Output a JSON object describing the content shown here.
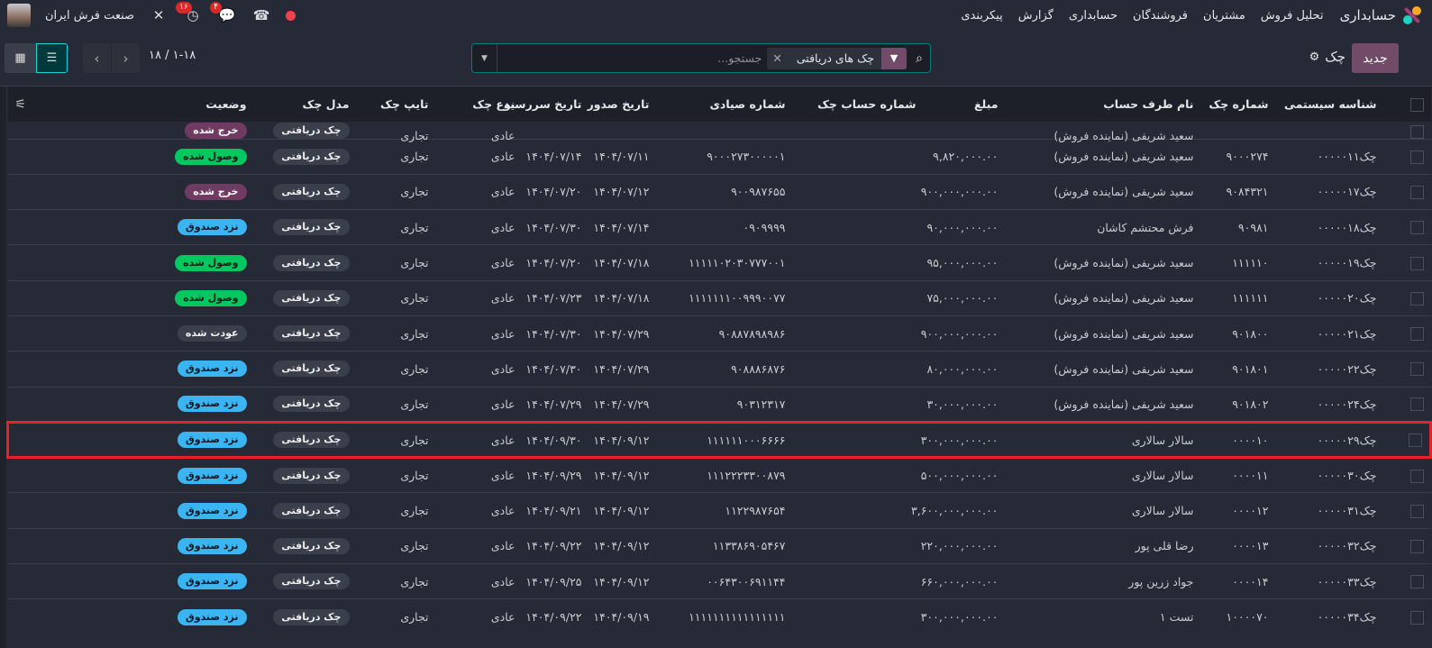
{
  "navbar": {
    "app_name": "حسابداری",
    "menu": [
      "تحلیل فروش",
      "مشتریان",
      "فروشندگان",
      "حسابداری",
      "گزارش",
      "پیکربندی"
    ],
    "company": "صنعت فرش ایران",
    "activity_count": "۱۶",
    "message_count": "۴",
    "logo_colors": [
      "#f9a825",
      "#1ad3c0",
      "#a43c78"
    ]
  },
  "control": {
    "new_label": "جدید",
    "breadcrumb": "چک",
    "facet": "چک های دریافتی",
    "search_placeholder": "جستجو...",
    "pager": "۱-۱۸ / ۱۸",
    "active_view": "list"
  },
  "columns": [
    "شناسه سیستمی",
    "شماره چک",
    "نام طرف حساب",
    "مبلغ",
    "شماره حساب چک",
    "شماره صیادی",
    "تاریخ صدور",
    "تاریخ سررسید",
    "نوع چک",
    "تایپ چک",
    "مدل چک",
    "وضعیت"
  ],
  "status_colors": {
    "وصول شده": "green",
    "خرج شده": "purple",
    "نزد صندوق": "blue",
    "عودت شده": "grey"
  },
  "rows": [
    {
      "partial": true,
      "id": "",
      "num": "",
      "partner": "سعید شریفی (نماینده فروش)",
      "amount": "",
      "account": "",
      "sayadi": "",
      "issue": "",
      "due": "",
      "kind": "عادی",
      "type": "تجاری",
      "model": "چک دریافتی",
      "status": "خرج شده"
    },
    {
      "id": "چک۰۰۰۰۰۱۱",
      "num": "۹۰۰۰۲۷۴",
      "partner": "سعید شریفی (نماینده فروش)",
      "amount": "۹,۸۲۰,۰۰۰.۰۰",
      "account": "",
      "sayadi": "۹۰۰۰۲۷۳۰۰۰۰۰۱",
      "issue": "۱۴۰۴/۰۷/۱۱",
      "due": "۱۴۰۴/۰۷/۱۴",
      "kind": "عادی",
      "type": "تجاری",
      "model": "چک دریافتی",
      "status": "وصول شده"
    },
    {
      "id": "چک۰۰۰۰۰۱۷",
      "num": "۹۰۸۴۳۲۱",
      "partner": "سعید شریفی (نماینده فروش)",
      "amount": "۹۰۰,۰۰۰,۰۰۰.۰۰",
      "account": "",
      "sayadi": "۹۰۰۹۸۷۶۵۵",
      "issue": "۱۴۰۴/۰۷/۱۲",
      "due": "۱۴۰۴/۰۷/۲۰",
      "kind": "عادی",
      "type": "تجاری",
      "model": "چک دریافتی",
      "status": "خرج شده"
    },
    {
      "id": "چک۰۰۰۰۰۱۸",
      "num": "۹۰۹۸۱",
      "partner": "فرش محتشم کاشان",
      "amount": "۹۰,۰۰۰,۰۰۰.۰۰",
      "account": "",
      "sayadi": "۰۹۰۹۹۹۹",
      "issue": "۱۴۰۴/۰۷/۱۴",
      "due": "۱۴۰۴/۰۷/۳۰",
      "kind": "عادی",
      "type": "تجاری",
      "model": "چک دریافتی",
      "status": "نزد صندوق"
    },
    {
      "id": "چک۰۰۰۰۰۱۹",
      "num": "۱۱۱۱۱۰",
      "partner": "سعید شریفی (نماینده فروش)",
      "amount": "۹۵,۰۰۰,۰۰۰.۰۰",
      "account": "",
      "sayadi": "۱۱۱۱۱۰۲۰۳۰۷۷۷۰۰۱",
      "issue": "۱۴۰۴/۰۷/۱۸",
      "due": "۱۴۰۴/۰۷/۲۰",
      "kind": "عادی",
      "type": "تجاری",
      "model": "چک دریافتی",
      "status": "وصول شده"
    },
    {
      "id": "چک۰۰۰۰۰۲۰",
      "num": "۱۱۱۱۱۱",
      "partner": "سعید شریفی (نماینده فروش)",
      "amount": "۷۵,۰۰۰,۰۰۰.۰۰",
      "account": "",
      "sayadi": "۱۱۱۱۱۱۱۰۰۹۹۹۰۰۷۷",
      "issue": "۱۴۰۴/۰۷/۱۸",
      "due": "۱۴۰۴/۰۷/۲۳",
      "kind": "عادی",
      "type": "تجاری",
      "model": "چک دریافتی",
      "status": "وصول شده"
    },
    {
      "id": "چک۰۰۰۰۰۲۱",
      "num": "۹۰۱۸۰۰",
      "partner": "سعید شریفی (نماینده فروش)",
      "amount": "۹۰۰,۰۰۰,۰۰۰.۰۰",
      "account": "",
      "sayadi": "۹۰۸۸۷۸۹۸۹۸۶",
      "issue": "۱۴۰۴/۰۷/۲۹",
      "due": "۱۴۰۴/۰۷/۳۰",
      "kind": "عادی",
      "type": "تجاری",
      "model": "چک دریافتی",
      "status": "عودت شده"
    },
    {
      "id": "چک۰۰۰۰۰۲۲",
      "num": "۹۰۱۸۰۱",
      "partner": "سعید شریفی (نماینده فروش)",
      "amount": "۸۰,۰۰۰,۰۰۰.۰۰",
      "account": "",
      "sayadi": "۹۰۸۸۸۶۸۷۶",
      "issue": "۱۴۰۴/۰۷/۲۹",
      "due": "۱۴۰۴/۰۷/۳۰",
      "kind": "عادی",
      "type": "تجاری",
      "model": "چک دریافتی",
      "status": "نزد صندوق"
    },
    {
      "id": "چک۰۰۰۰۰۲۴",
      "num": "۹۰۱۸۰۲",
      "partner": "سعید شریفی (نماینده فروش)",
      "amount": "۳۰,۰۰۰,۰۰۰.۰۰",
      "account": "",
      "sayadi": "۹۰۳۱۲۳۱۷",
      "issue": "۱۴۰۴/۰۷/۲۹",
      "due": "۱۴۰۴/۰۷/۲۹",
      "kind": "عادی",
      "type": "تجاری",
      "model": "چک دریافتی",
      "status": "نزد صندوق"
    },
    {
      "highlighted": true,
      "id": "چک۰۰۰۰۰۲۹",
      "num": "۰۰۰۰۱۰",
      "partner": "سالار سالاری",
      "amount": "۳۰۰,۰۰۰,۰۰۰.۰۰",
      "account": "",
      "sayadi": "۱۱۱۱۱۱۰۰۰۶۶۶۶",
      "issue": "۱۴۰۴/۰۹/۱۲",
      "due": "۱۴۰۴/۰۹/۳۰",
      "kind": "عادی",
      "type": "تجاری",
      "model": "چک دریافتی",
      "status": "نزد صندوق"
    },
    {
      "id": "چک۰۰۰۰۰۳۰",
      "num": "۰۰۰۰۱۱",
      "partner": "سالار سالاری",
      "amount": "۵۰۰,۰۰۰,۰۰۰.۰۰",
      "account": "",
      "sayadi": "۱۱۱۲۲۲۳۳۰۰۸۷۹",
      "issue": "۱۴۰۴/۰۹/۱۲",
      "due": "۱۴۰۴/۰۹/۲۹",
      "kind": "عادی",
      "type": "تجاری",
      "model": "چک دریافتی",
      "status": "نزد صندوق"
    },
    {
      "id": "چک۰۰۰۰۰۳۱",
      "num": "۰۰۰۰۱۲",
      "partner": "سالار سالاری",
      "amount": "۳,۶۰۰,۰۰۰,۰۰۰.۰۰",
      "account": "",
      "sayadi": "۱۱۲۲۹۸۷۶۵۴",
      "issue": "۱۴۰۴/۰۹/۱۲",
      "due": "۱۴۰۴/۰۹/۲۱",
      "kind": "عادی",
      "type": "تجاری",
      "model": "چک دریافتی",
      "status": "نزد صندوق"
    },
    {
      "id": "چک۰۰۰۰۰۳۲",
      "num": "۰۰۰۰۱۳",
      "partner": "رضا قلی پور",
      "amount": "۲۲۰,۰۰۰,۰۰۰.۰۰",
      "account": "",
      "sayadi": "۱۱۳۳۸۶۹۰۵۴۶۷",
      "issue": "۱۴۰۴/۰۹/۱۲",
      "due": "۱۴۰۴/۰۹/۲۲",
      "kind": "عادی",
      "type": "تجاری",
      "model": "چک دریافتی",
      "status": "نزد صندوق"
    },
    {
      "id": "چک۰۰۰۰۰۳۳",
      "num": "۰۰۰۰۱۴",
      "partner": "جواد زرین پور",
      "amount": "۶۶۰,۰۰۰,۰۰۰.۰۰",
      "account": "",
      "sayadi": "۰۰۶۴۳۰۰۶۹۱۱۴۴",
      "issue": "۱۴۰۴/۰۹/۱۲",
      "due": "۱۴۰۴/۰۹/۲۵",
      "kind": "عادی",
      "type": "تجاری",
      "model": "چک دریافتی",
      "status": "نزد صندوق"
    },
    {
      "id": "چک۰۰۰۰۰۳۴",
      "num": "۱۰۰۰۰۷۰",
      "partner": "تست ۱",
      "amount": "۳۰۰,۰۰۰,۰۰۰.۰۰",
      "account": "",
      "sayadi": "۱۱۱۱۱۱۱۱۱۱۱۱۱۱۱۱",
      "issue": "۱۴۰۴/۰۹/۱۹",
      "due": "۱۴۰۴/۰۹/۲۲",
      "kind": "عادی",
      "type": "تجاری",
      "model": "چک دریافتی",
      "status": "نزد صندوق"
    }
  ]
}
